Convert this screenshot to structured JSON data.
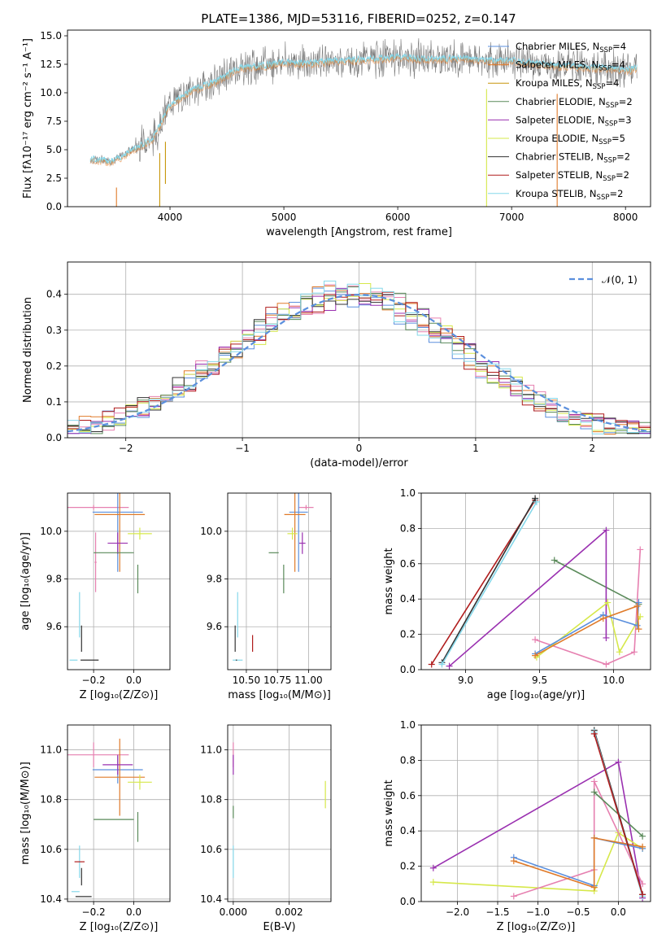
{
  "figure": {
    "title": "PLATE=1386, MJD=53116, FIBERID=0252, z=0.147"
  },
  "colors": {
    "Chabrier MILES": "#5b8fdd",
    "Salpeter MILES": "#e07b2a",
    "Kroupa MILES": "#c8960a",
    "Chabrier ELODIE": "#5a8a5a",
    "Salpeter ELODIE": "#9a30b0",
    "Kroupa ELODIE": "#d6e84a",
    "Chabrier STELIB": "#333333",
    "Salpeter STELIB": "#b01c1c",
    "Kroupa STELIB": "#86d8ea",
    "Kroupa MILES alt": "#e680b0",
    "data": "#7a7a7a",
    "normal": "#5b8fdd"
  },
  "legend_spectrum": [
    {
      "label": "Chabrier MILES, N",
      "sub": "SSP",
      "tail": "=4",
      "color": "#5b8fdd"
    },
    {
      "label": "Salpeter MILES, N",
      "sub": "SSP",
      "tail": "=4",
      "color": "#e07b2a"
    },
    {
      "label": "Kroupa MILES, N",
      "sub": "SSP",
      "tail": "=4",
      "color": "#c8960a"
    },
    {
      "label": "Chabrier ELODIE, N",
      "sub": "SSP",
      "tail": "=2",
      "color": "#5a8a5a"
    },
    {
      "label": "Salpeter ELODIE, N",
      "sub": "SSP",
      "tail": "=3",
      "color": "#9a30b0"
    },
    {
      "label": "Kroupa ELODIE, N",
      "sub": "SSP",
      "tail": "=5",
      "color": "#d6e84a"
    },
    {
      "label": "Chabrier STELIB, N",
      "sub": "SSP",
      "tail": "=2",
      "color": "#333333"
    },
    {
      "label": "Salpeter STELIB, N",
      "sub": "SSP",
      "tail": "=2",
      "color": "#b01c1c"
    },
    {
      "label": "Kroupa STELIB, N",
      "sub": "SSP",
      "tail": "=2",
      "color": "#86d8ea"
    }
  ],
  "chart_data": [
    {
      "id": "spectrum",
      "type": "line",
      "xlabel": "wavelength [Angstrom, rest frame]",
      "ylabel": "Flux [fλ10⁻¹⁷ erg cm⁻² s⁻¹ A⁻¹]",
      "xlim": [
        3100,
        8220
      ],
      "ylim": [
        0,
        15.5
      ],
      "xticks": [
        4000,
        5000,
        6000,
        7000,
        8000
      ],
      "yticks": [
        0.0,
        2.5,
        5.0,
        7.5,
        10.0,
        12.5,
        15.0
      ],
      "grid": false,
      "legend_position": "upper right",
      "continuum": {
        "x": [
          3300,
          3500,
          3700,
          3850,
          4000,
          4200,
          4400,
          4600,
          4800,
          5000,
          5200,
          5400,
          5600,
          5800,
          6000,
          6200,
          6400,
          6600,
          6800,
          7000,
          7200,
          7400,
          7600,
          7800,
          8000,
          8100
        ],
        "y": [
          4.2,
          4.0,
          5.2,
          6.0,
          9.0,
          10.3,
          11.0,
          12.2,
          12.4,
          12.7,
          12.6,
          12.8,
          12.9,
          13.0,
          13.2,
          13.0,
          13.0,
          13.1,
          12.8,
          12.9,
          12.6,
          12.4,
          12.3,
          12.2,
          12.0,
          12.2
        ]
      },
      "spikes_down": [
        {
          "x": 3530,
          "y": 0.0
        },
        {
          "x": 3910,
          "y": 0.0
        },
        {
          "x": 3960,
          "y": 2.0
        },
        {
          "x": 6780,
          "y": 0.0
        },
        {
          "x": 7400,
          "y": 0.0
        }
      ]
    },
    {
      "id": "residuals",
      "type": "histogram",
      "xlabel": "(data-model)/error",
      "ylabel": "Normed distribution",
      "xlim": [
        -2.5,
        2.5
      ],
      "ylim": [
        0,
        0.49
      ],
      "xticks": [
        -2,
        -1,
        0,
        1,
        2
      ],
      "yticks": [
        0.0,
        0.1,
        0.2,
        0.3,
        0.4
      ],
      "grid": true,
      "bin_width": 0.1,
      "legend": [
        {
          "label": "𝒩(0, 1)",
          "color": "#5b8fdd",
          "style": "dashed"
        }
      ],
      "legend_position": "upper right"
    },
    {
      "id": "age_vs_Z",
      "type": "errorbar",
      "xlabel": "Z [log₁₀(Z/Z⊙)]",
      "ylabel": "age  [log₁₀(age/yr)]",
      "xlim": [
        -0.33,
        0.18
      ],
      "ylim": [
        9.42,
        10.16
      ],
      "xticks": [
        -0.2,
        0.0
      ],
      "yticks": [
        9.6,
        9.8,
        10.0
      ],
      "grid": true,
      "points": [
        {
          "color": "#e680b0",
          "x": -0.2,
          "y": 10.1,
          "xerr": 0.35,
          "yerr": 0.02
        },
        {
          "color": "#5b8fdd",
          "x": -0.08,
          "y": 10.08,
          "xerr": 0.25,
          "yerr": 0.5
        },
        {
          "color": "#e07b2a",
          "x": -0.07,
          "y": 10.07,
          "xerr": 0.25,
          "yerr": 0.48
        },
        {
          "color": "#e680b0",
          "x": -0.19,
          "y": 9.87,
          "xerr": 0.01,
          "yerr": 0.25
        },
        {
          "color": "#9a30b0",
          "x": -0.08,
          "y": 9.95,
          "xerr": 0.1,
          "yerr": 0.09
        },
        {
          "color": "#d6e84a",
          "x": 0.03,
          "y": 9.99,
          "xerr": 0.12,
          "yerr": 0.05
        },
        {
          "color": "#5a8a5a",
          "x": -0.1,
          "y": 9.91,
          "xerr": 0.2,
          "yerr": 0.0
        },
        {
          "color": "#5a8a5a",
          "x": 0.02,
          "y": 9.8,
          "xerr": 0.0,
          "yerr": 0.12
        },
        {
          "color": "#86d8ea",
          "x": -0.27,
          "y": 9.65,
          "xerr": 0.0,
          "yerr": 0.19
        },
        {
          "color": "#333333",
          "x": -0.26,
          "y": 9.55,
          "xerr": 0.0,
          "yerr": 0.11
        },
        {
          "color": "#333333",
          "x": -0.22,
          "y": 9.46,
          "xerr": 0.09,
          "yerr": 0.0
        },
        {
          "color": "#86d8ea",
          "x": -0.3,
          "y": 9.46,
          "xerr": 0.04,
          "yerr": 0.0
        }
      ]
    },
    {
      "id": "age_vs_mass",
      "type": "errorbar",
      "xlabel": "mass [log₁₀(M/M⊙)]",
      "ylabel": "",
      "xlim": [
        10.35,
        11.18
      ],
      "ylim": [
        9.42,
        10.16
      ],
      "xticks": [
        10.5,
        10.75,
        11.0
      ],
      "yticks": [
        9.6,
        9.8,
        10.0
      ],
      "grid": true,
      "points": [
        {
          "color": "#e680b0",
          "x": 10.98,
          "y": 10.1,
          "xerr": 0.12,
          "yerr": 0.02
        },
        {
          "color": "#5b8fdd",
          "x": 10.92,
          "y": 10.08,
          "xerr": 0.15,
          "yerr": 0.5
        },
        {
          "color": "#e07b2a",
          "x": 10.89,
          "y": 10.07,
          "xerr": 0.17,
          "yerr": 0.48
        },
        {
          "color": "#9a30b0",
          "x": 10.95,
          "y": 9.95,
          "xerr": 0.05,
          "yerr": 0.09
        },
        {
          "color": "#d6e84a",
          "x": 10.87,
          "y": 9.99,
          "xerr": 0.08,
          "yerr": 0.05
        },
        {
          "color": "#5a8a5a",
          "x": 10.72,
          "y": 9.91,
          "xerr": 0.08,
          "yerr": 0.0
        },
        {
          "color": "#5a8a5a",
          "x": 10.8,
          "y": 9.8,
          "xerr": 0.0,
          "yerr": 0.12
        },
        {
          "color": "#86d8ea",
          "x": 10.43,
          "y": 9.65,
          "xerr": 0.0,
          "yerr": 0.19
        },
        {
          "color": "#333333",
          "x": 10.41,
          "y": 9.55,
          "xerr": 0.0,
          "yerr": 0.11
        },
        {
          "color": "#b01c1c",
          "x": 10.55,
          "y": 9.53,
          "xerr": 0.0,
          "yerr": 0.07
        },
        {
          "color": "#86d8ea",
          "x": 10.43,
          "y": 9.46,
          "xerr": 0.08,
          "yerr": 0.0
        },
        {
          "color": "#333333",
          "x": 10.42,
          "y": 9.46,
          "xerr": 0.01,
          "yerr": 0.0
        }
      ]
    },
    {
      "id": "mass_weight_vs_age",
      "type": "line",
      "xlabel": "age  [log₁₀(age/yr)]",
      "ylabel": "mass weight",
      "xlim": [
        8.7,
        10.25
      ],
      "ylim": [
        0,
        1
      ],
      "xticks": [
        9.0,
        9.5,
        10.0
      ],
      "yticks": [
        0.0,
        0.2,
        0.4,
        0.6,
        0.8,
        1.0
      ],
      "grid": true,
      "series": [
        {
          "color": "#b01c1c",
          "x": [
            8.77,
            9.47
          ],
          "y": [
            0.03,
            0.96
          ]
        },
        {
          "color": "#333333",
          "x": [
            8.84,
            9.47
          ],
          "y": [
            0.04,
            0.97
          ]
        },
        {
          "color": "#86d8ea",
          "x": [
            8.84,
            9.48
          ],
          "y": [
            0.03,
            0.95
          ]
        },
        {
          "color": "#5a8a5a",
          "x": [
            9.6,
            10.17
          ],
          "y": [
            0.62,
            0.37
          ]
        },
        {
          "color": "#9a30b0",
          "x": [
            8.89,
            9.95,
            9.95
          ],
          "y": [
            0.02,
            0.79,
            0.18
          ]
        },
        {
          "color": "#e680b0",
          "x": [
            9.47,
            9.95,
            10.14,
            10.18
          ],
          "y": [
            0.17,
            0.03,
            0.1,
            0.68
          ]
        },
        {
          "color": "#d6e84a",
          "x": [
            9.48,
            9.96,
            10.04,
            10.18
          ],
          "y": [
            0.07,
            0.38,
            0.1,
            0.3
          ]
        },
        {
          "color": "#5b8fdd",
          "x": [
            9.47,
            9.93,
            10.16,
            10.17
          ],
          "y": [
            0.09,
            0.31,
            0.25,
            0.38
          ]
        },
        {
          "color": "#e07b2a",
          "x": [
            9.47,
            9.93,
            10.16,
            10.17
          ],
          "y": [
            0.08,
            0.29,
            0.36,
            0.23
          ]
        }
      ]
    },
    {
      "id": "mass_vs_Z",
      "type": "errorbar",
      "xlabel": "Z [log₁₀(Z/Z⊙)]",
      "ylabel": "mass [log₁₀(M/M⊙)]",
      "xlim": [
        -0.33,
        0.18
      ],
      "ylim": [
        10.39,
        11.1
      ],
      "xticks": [
        -0.2,
        0.0
      ],
      "yticks": [
        10.4,
        10.6,
        10.8,
        11.0
      ],
      "grid": true,
      "points": [
        {
          "color": "#e680b0",
          "x": -0.2,
          "y": 10.98,
          "xerr": 0.35,
          "yerr": 0.1
        },
        {
          "color": "#5b8fdd",
          "x": -0.08,
          "y": 10.92,
          "xerr": 0.25,
          "yerr": 0.11
        },
        {
          "color": "#e07b2a",
          "x": -0.07,
          "y": 10.89,
          "xerr": 0.25,
          "yerr": 0.31
        },
        {
          "color": "#9a30b0",
          "x": -0.08,
          "y": 10.94,
          "xerr": 0.15,
          "yerr": 0.08
        },
        {
          "color": "#d6e84a",
          "x": 0.03,
          "y": 10.87,
          "xerr": 0.12,
          "yerr": 0.06
        },
        {
          "color": "#5a8a5a",
          "x": -0.1,
          "y": 10.72,
          "xerr": 0.2,
          "yerr": 0.0
        },
        {
          "color": "#5a8a5a",
          "x": 0.02,
          "y": 10.69,
          "xerr": 0.0,
          "yerr": 0.12
        },
        {
          "color": "#86d8ea",
          "x": -0.27,
          "y": 10.55,
          "xerr": 0.0,
          "yerr": 0.13
        },
        {
          "color": "#b01c1c",
          "x": -0.27,
          "y": 10.55,
          "xerr": 0.05,
          "yerr": 0.0
        },
        {
          "color": "#333333",
          "x": -0.26,
          "y": 10.49,
          "xerr": 0.0,
          "yerr": 0.07
        },
        {
          "color": "#86d8ea",
          "x": -0.29,
          "y": 10.43,
          "xerr": 0.04,
          "yerr": 0.0
        },
        {
          "color": "#333333",
          "x": -0.25,
          "y": 10.41,
          "xerr": 0.08,
          "yerr": 0.0
        }
      ]
    },
    {
      "id": "mass_vs_EBV",
      "type": "errorbar",
      "xlabel": "E(B-V)",
      "ylabel": "",
      "xlim": [
        -0.0002,
        0.0035
      ],
      "ylim": [
        10.39,
        11.1
      ],
      "xticks": [
        0.0,
        0.002
      ],
      "yticks": [
        10.4,
        10.6,
        10.8,
        11.0
      ],
      "grid": true,
      "points": [
        {
          "color": "#e680b0",
          "x": 0.0,
          "y": 10.98,
          "xerr": 0.0,
          "yerr": 0.1
        },
        {
          "color": "#9a30b0",
          "x": 0.0,
          "y": 10.94,
          "xerr": 0.0,
          "yerr": 0.08
        },
        {
          "color": "#5a8a5a",
          "x": 0.0,
          "y": 10.75,
          "xerr": 0.0,
          "yerr": 0.05
        },
        {
          "color": "#86d8ea",
          "x": 0.0,
          "y": 10.55,
          "xerr": 0.0,
          "yerr": 0.13
        },
        {
          "color": "#d6e84a",
          "x": 0.0033,
          "y": 10.82,
          "xerr": 0.0,
          "yerr": 0.11
        }
      ]
    },
    {
      "id": "mass_weight_vs_Z",
      "type": "line",
      "xlabel": "Z [log₁₀(Z/Z⊙)]",
      "ylabel": "mass weight",
      "xlim": [
        -2.45,
        0.4
      ],
      "ylim": [
        0,
        1
      ],
      "xticks": [
        -2.0,
        -1.5,
        -1.0,
        -0.5,
        0.0
      ],
      "yticks": [
        0.0,
        0.2,
        0.4,
        0.6,
        0.8,
        1.0
      ],
      "grid": true,
      "series": [
        {
          "color": "#9a30b0",
          "x": [
            -2.3,
            0.0,
            0.3
          ],
          "y": [
            0.19,
            0.79,
            0.02
          ]
        },
        {
          "color": "#d6e84a",
          "x": [
            -2.3,
            -0.3,
            0.0,
            0.3
          ],
          "y": [
            0.11,
            0.06,
            0.39,
            0.3
          ]
        },
        {
          "color": "#e680b0",
          "x": [
            -1.3,
            -0.3,
            -0.3,
            0.3
          ],
          "y": [
            0.03,
            0.18,
            0.68,
            0.1
          ]
        },
        {
          "color": "#5b8fdd",
          "x": [
            -1.3,
            -0.3,
            -0.3,
            0.3
          ],
          "y": [
            0.25,
            0.09,
            0.36,
            0.3
          ]
        },
        {
          "color": "#e07b2a",
          "x": [
            -1.3,
            -0.3,
            -0.3,
            0.3
          ],
          "y": [
            0.23,
            0.08,
            0.36,
            0.31
          ]
        },
        {
          "color": "#5a8a5a",
          "x": [
            -0.3,
            0.3
          ],
          "y": [
            0.62,
            0.37
          ]
        },
        {
          "color": "#333333",
          "x": [
            -0.3,
            0.3
          ],
          "y": [
            0.97,
            0.04
          ]
        },
        {
          "color": "#86d8ea",
          "x": [
            -0.3,
            0.3
          ],
          "y": [
            0.96,
            0.03
          ]
        },
        {
          "color": "#b01c1c",
          "x": [
            -0.3,
            0.3
          ],
          "y": [
            0.95,
            0.04
          ]
        }
      ]
    }
  ]
}
